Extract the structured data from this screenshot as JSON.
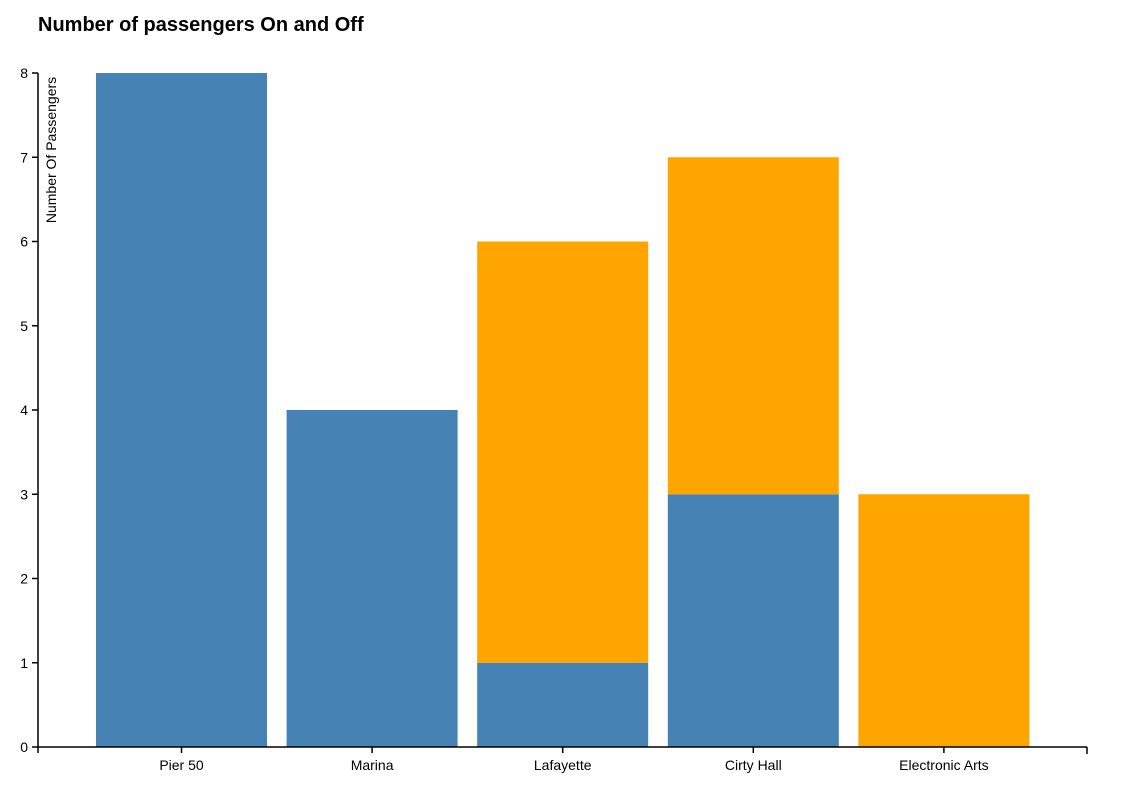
{
  "chart_data": {
    "type": "bar",
    "stacked": true,
    "title": "Number of passengers On and Off",
    "xlabel": "",
    "ylabel": "Number Of Passengers",
    "categories": [
      "Pier 50",
      "Marina",
      "Lafayette",
      "Cirty Hall",
      "Electronic Arts"
    ],
    "ylim": [
      0,
      8
    ],
    "yticks": [
      "0",
      "1",
      "2",
      "3",
      "4",
      "5",
      "6",
      "7",
      "8"
    ],
    "grid": false,
    "series": [
      {
        "color": "#4682b4",
        "values": [
          8,
          4,
          1,
          3,
          0
        ]
      },
      {
        "color": "#ffa500",
        "values": [
          0,
          0,
          5,
          4,
          3
        ]
      }
    ]
  }
}
